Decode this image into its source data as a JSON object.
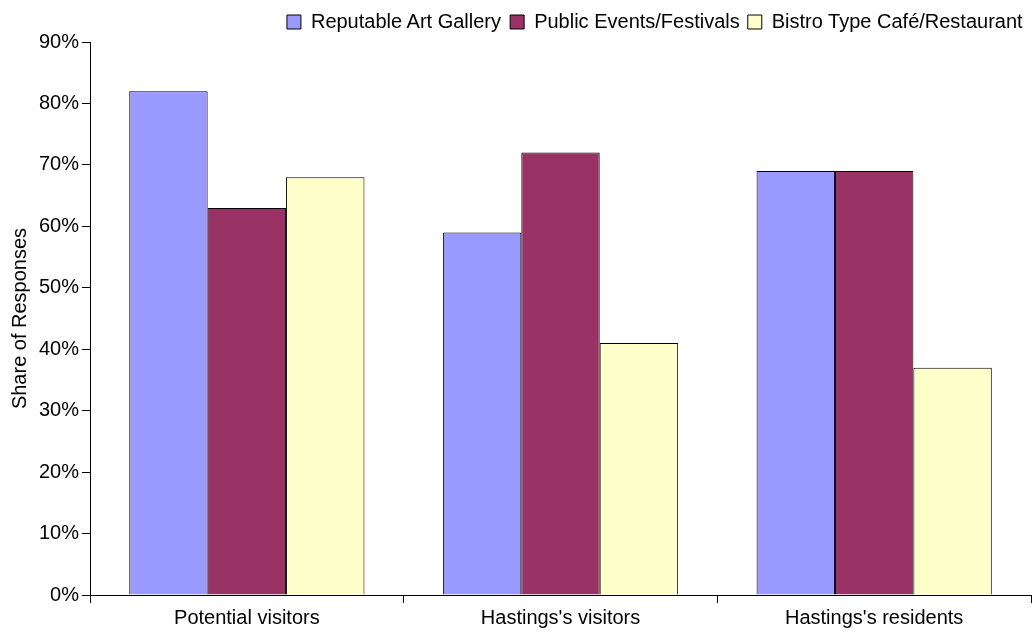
{
  "chart_data": {
    "type": "bar",
    "ylabel": "Share of Responses",
    "categories": [
      "Potential visitors",
      "Hastings's visitors",
      "Hastings's residents"
    ],
    "series": [
      {
        "name": "Reputable Art Gallery",
        "color": "#9999ff",
        "values": [
          82,
          59,
          69
        ]
      },
      {
        "name": "Public Events/Festivals",
        "color": "#993366",
        "values": [
          63,
          72,
          69
        ]
      },
      {
        "name": "Bistro Type Café/Restaurant",
        "color": "#ffffcc",
        "values": [
          68,
          41,
          37
        ]
      }
    ],
    "ylim": [
      0,
      90
    ],
    "yticks": [
      {
        "value": 0,
        "label": "0%"
      },
      {
        "value": 10,
        "label": "10%"
      },
      {
        "value": 20,
        "label": "20%"
      },
      {
        "value": 30,
        "label": "30%"
      },
      {
        "value": 40,
        "label": "40%"
      },
      {
        "value": 50,
        "label": "50%"
      },
      {
        "value": 60,
        "label": "60%"
      },
      {
        "value": 70,
        "label": "70%"
      },
      {
        "value": 80,
        "label": "80%"
      },
      {
        "value": 90,
        "label": "90%"
      }
    ],
    "grid": false,
    "legend": "top right"
  }
}
